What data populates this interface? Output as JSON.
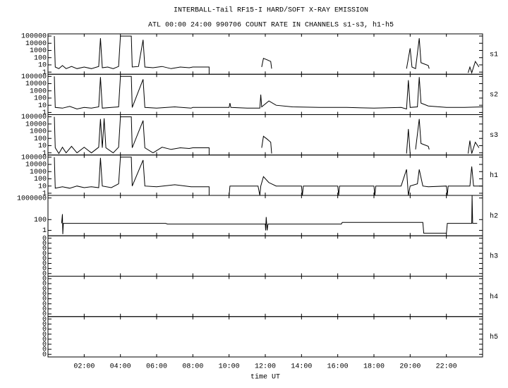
{
  "title": "INTERBALL-Tail RF15-I HARD/SOFT X-RAY EMISSION",
  "subtitle": "ATL 00:00 24:00 990706  COUNT RATE IN CHANNELS s1-s3, h1-h5",
  "xlabel": "time UT",
  "xlim": [
    0,
    24
  ],
  "xticks": [
    {
      "value": 2,
      "label": "02:00"
    },
    {
      "value": 4,
      "label": "04:00"
    },
    {
      "value": 6,
      "label": "06:00"
    },
    {
      "value": 8,
      "label": "08:00"
    },
    {
      "value": 10,
      "label": "10:00"
    },
    {
      "value": 12,
      "label": "12:00"
    },
    {
      "value": 14,
      "label": "14:00"
    },
    {
      "value": 16,
      "label": "16:00"
    },
    {
      "value": 18,
      "label": "18:00"
    },
    {
      "value": 20,
      "label": "20:00"
    },
    {
      "value": 22,
      "label": "22:00"
    }
  ],
  "chart_data": [
    {
      "type": "line",
      "label": "s1",
      "log_scale": true,
      "color": "#000000",
      "ylim": [
        0.5,
        200000
      ],
      "yticks": [
        1,
        10,
        100,
        1000,
        10000,
        100000
      ],
      "x": [
        0.35,
        0.4,
        0.6,
        0.8,
        1.0,
        1.3,
        1.6,
        2.0,
        2.4,
        2.8,
        2.9,
        3.0,
        3.3,
        3.6,
        3.9,
        4.0,
        4.6,
        4.65,
        5.0,
        5.25,
        5.35,
        5.8,
        6.3,
        6.8,
        7.3,
        7.8,
        8.0,
        8.9,
        8.9,
        null,
        11.8,
        11.9,
        12.1,
        12.3,
        12.35,
        null,
        19.8,
        20.0,
        20.1,
        20.3,
        20.5,
        20.6,
        21.0,
        21.05,
        null,
        23.2,
        23.3,
        23.4,
        23.6,
        23.8
      ],
      "values": [
        100000,
        5,
        3,
        8,
        3,
        6,
        3,
        5,
        3,
        6,
        50000,
        4,
        5,
        3,
        6,
        100000,
        100000,
        5,
        6,
        30000,
        5,
        4,
        6,
        3,
        5,
        4,
        5,
        5,
        0.5,
        null,
        5,
        80,
        50,
        30,
        3,
        null,
        3,
        2000,
        5,
        3,
        50000,
        20,
        8,
        3,
        null,
        0.8,
        5,
        0.8,
        30,
        5
      ]
    },
    {
      "type": "line",
      "label": "s2",
      "log_scale": true,
      "color": "#000000",
      "ylim": [
        0.5,
        200000
      ],
      "yticks": [
        1,
        10,
        100,
        1000,
        10000,
        100000
      ],
      "x": [
        0.35,
        0.4,
        0.8,
        1.2,
        1.6,
        2.0,
        2.4,
        2.8,
        2.9,
        3.0,
        3.5,
        3.9,
        4.0,
        4.6,
        4.65,
        5.25,
        5.35,
        6,
        7,
        7.9,
        8.0,
        9,
        10.0,
        10.05,
        10.1,
        11,
        11.7,
        11.75,
        11.8,
        12.2,
        12.6,
        13.5,
        15,
        16.5,
        18,
        19.5,
        19.8,
        19.9,
        20.0,
        20.4,
        20.5,
        20.6,
        21,
        22,
        23,
        24
      ],
      "values": [
        100000,
        5,
        4,
        7,
        3,
        5,
        4,
        6,
        80000,
        4,
        5,
        6,
        100000,
        100000,
        5,
        40000,
        5,
        4,
        6,
        4,
        5,
        5,
        5,
        20,
        5,
        4,
        4,
        300,
        6,
        40,
        10,
        6,
        5,
        5,
        4,
        5,
        3,
        30000,
        5,
        6,
        80000,
        20,
        8,
        5,
        5,
        6
      ]
    },
    {
      "type": "line",
      "label": "s3",
      "log_scale": true,
      "color": "#000000",
      "ylim": [
        0.5,
        200000
      ],
      "yticks": [
        1,
        10,
        100,
        1000,
        10000,
        100000
      ],
      "x": [
        0.35,
        0.4,
        0.6,
        0.8,
        1.0,
        1.3,
        1.6,
        2.0,
        2.4,
        2.8,
        2.9,
        3.0,
        3.1,
        3.2,
        3.6,
        3.9,
        4.0,
        4.6,
        4.65,
        5.25,
        5.35,
        5.8,
        6.3,
        6.8,
        7.3,
        7.8,
        8.0,
        8.9,
        8.9,
        null,
        11.8,
        11.9,
        12.1,
        12.3,
        12.35,
        null,
        19.8,
        19.9,
        20.0,
        null,
        20.3,
        20.5,
        20.6,
        21.0,
        21.05,
        null,
        23.2,
        23.3,
        23.4,
        23.6,
        23.8
      ],
      "values": [
        100000,
        5,
        0.8,
        6,
        1,
        8,
        1,
        6,
        1,
        6,
        50000,
        5,
        60000,
        5,
        1,
        6,
        100000,
        100000,
        5,
        30000,
        5,
        1,
        6,
        3,
        5,
        4,
        5,
        5,
        0.5,
        null,
        5,
        200,
        80,
        30,
        0.8,
        null,
        0.8,
        2000,
        0.8,
        null,
        3,
        50000,
        20,
        8,
        3,
        null,
        0.8,
        50,
        0.8,
        30,
        5
      ]
    },
    {
      "type": "line",
      "label": "h1",
      "log_scale": true,
      "color": "#000000",
      "ylim": [
        0.5,
        200000
      ],
      "yticks": [
        1,
        10,
        100,
        1000,
        10000,
        100000
      ],
      "x": [
        0.35,
        0.4,
        0.8,
        1.2,
        1.6,
        2.0,
        2.4,
        2.8,
        2.9,
        3.0,
        3.5,
        3.9,
        4.0,
        4.6,
        4.65,
        5.25,
        5.35,
        6,
        7,
        7.9,
        8.0,
        8.9,
        8.9,
        null,
        10.0,
        10.05,
        11,
        11.6,
        11.7,
        11.75,
        11.9,
        12.2,
        12.6,
        13,
        14,
        14.05,
        14.1,
        16,
        16.05,
        16.1,
        18,
        18.05,
        18.1,
        19.5,
        19.8,
        19.9,
        20.0,
        20.4,
        20.5,
        20.7,
        21,
        22,
        22.05,
        22.1,
        23.3,
        23.4,
        23.5,
        24
      ],
      "values": [
        100000,
        5,
        8,
        5,
        10,
        6,
        8,
        6,
        80000,
        10,
        6,
        20,
        100000,
        100000,
        10,
        40000,
        10,
        8,
        15,
        8,
        8,
        8,
        0.5,
        null,
        0.5,
        10,
        10,
        10,
        0.5,
        10,
        200,
        30,
        10,
        10,
        10,
        0.5,
        10,
        10,
        0.5,
        10,
        10,
        0.5,
        10,
        10,
        2000,
        0.5,
        10,
        20,
        2000,
        10,
        8,
        10,
        0.5,
        10,
        10,
        5000,
        10,
        10
      ]
    },
    {
      "type": "line",
      "label": "h2",
      "log_scale": true,
      "color": "#000000",
      "ylim": [
        0.1,
        3000000
      ],
      "yticks": [
        1,
        100,
        1000000
      ],
      "x": [
        0.75,
        0.8,
        0.82,
        0.85,
        6.5,
        6.6,
        12.0,
        12.02,
        12.05,
        12.1,
        12.15,
        16.2,
        16.25,
        20.7,
        20.75,
        22.0,
        22.05,
        23.4,
        23.42,
        23.45,
        23.7
      ],
      "values": [
        20,
        1000,
        0.2,
        20,
        20,
        15,
        15,
        1,
        300,
        1,
        15,
        15,
        30,
        30,
        0.3,
        0.3,
        20,
        20,
        3000000,
        20,
        20
      ]
    },
    {
      "type": "line",
      "label": "h3",
      "log_scale": true,
      "ylim": [
        3e-09,
        0.3
      ],
      "yticks": [
        {
          "value": 0.1,
          "label": "0"
        },
        {
          "value": 0.01,
          "label": "0"
        },
        {
          "value": 0.001,
          "label": "0"
        },
        {
          "value": 0.0001,
          "label": "0"
        },
        {
          "value": 1e-05,
          "label": "0"
        },
        {
          "value": 1e-06,
          "label": "0"
        },
        {
          "value": 1e-07,
          "label": "0"
        },
        {
          "value": 1e-08,
          "label": "0"
        }
      ]
    },
    {
      "type": "line",
      "label": "h4",
      "log_scale": true,
      "ylim": [
        3e-09,
        0.3
      ],
      "yticks": [
        {
          "value": 0.1,
          "label": "0"
        },
        {
          "value": 0.01,
          "label": "0"
        },
        {
          "value": 0.001,
          "label": "0"
        },
        {
          "value": 0.0001,
          "label": "0"
        },
        {
          "value": 1e-05,
          "label": "0"
        },
        {
          "value": 1e-06,
          "label": "0"
        },
        {
          "value": 1e-07,
          "label": "0"
        },
        {
          "value": 1e-08,
          "label": "0"
        }
      ]
    },
    {
      "type": "line",
      "label": "h5",
      "log_scale": true,
      "ylim": [
        3e-09,
        0.3
      ],
      "yticks": [
        {
          "value": 0.1,
          "label": "0"
        },
        {
          "value": 0.01,
          "label": "0"
        },
        {
          "value": 0.001,
          "label": "0"
        },
        {
          "value": 0.0001,
          "label": "0"
        },
        {
          "value": 1e-05,
          "label": "0"
        },
        {
          "value": 1e-06,
          "label": "0"
        },
        {
          "value": 1e-07,
          "label": "0"
        },
        {
          "value": 1e-08,
          "label": "0"
        }
      ]
    }
  ]
}
